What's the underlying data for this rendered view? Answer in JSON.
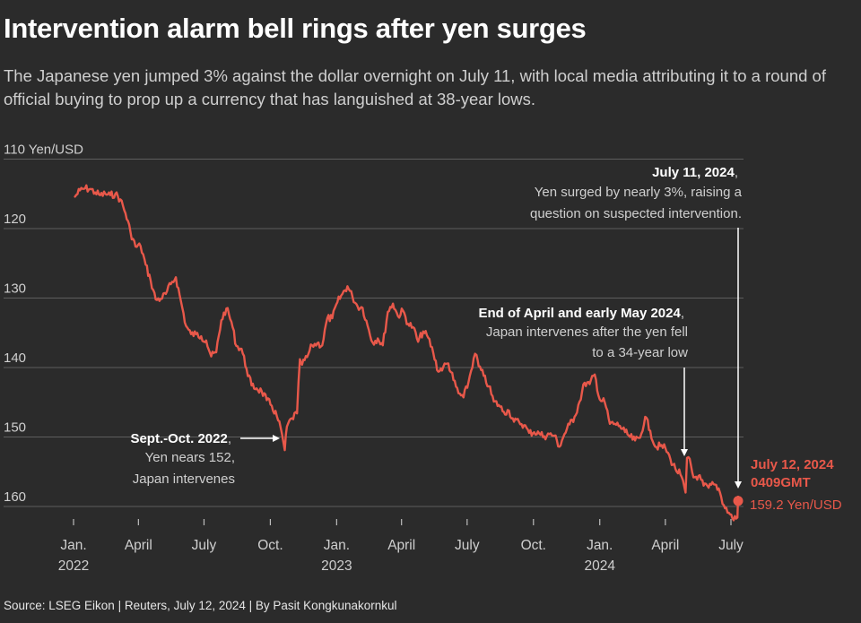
{
  "header": {
    "title": "Intervention alarm bell rings after yen surges",
    "subtitle": "The Japanese yen jumped 3% against the dollar overnight on July 11, with local media attributing it to a round of official buying to prop up a currency that has languished at 38-year lows."
  },
  "footer": {
    "source": "Source: LSEG Eikon | Reuters, July 12, 2024 | By Pasit Kongkunakornkul"
  },
  "colors": {
    "line": "#e8584a",
    "background": "#2b2b2b",
    "grid": "#5e5e5e"
  },
  "chart_data": {
    "type": "line",
    "ylabel": "Yen/USD",
    "ylim": [
      110,
      163
    ],
    "y_inverted": true,
    "yticks": [
      {
        "value": 110,
        "label": "110 Yen/USD"
      },
      {
        "value": 120,
        "label": "120"
      },
      {
        "value": 130,
        "label": "130"
      },
      {
        "value": 140,
        "label": "140"
      },
      {
        "value": 150,
        "label": "150"
      },
      {
        "value": 160,
        "label": "160"
      }
    ],
    "xlim": [
      "2022-01-01",
      "2024-07-31"
    ],
    "xticks": [
      {
        "date": "2022-01-01",
        "label": "Jan.",
        "year": "2022"
      },
      {
        "date": "2022-04-01",
        "label": "April",
        "year": ""
      },
      {
        "date": "2022-07-01",
        "label": "July",
        "year": ""
      },
      {
        "date": "2022-10-01",
        "label": "Oct.",
        "year": ""
      },
      {
        "date": "2023-01-01",
        "label": "Jan.",
        "year": "2023"
      },
      {
        "date": "2023-04-01",
        "label": "April",
        "year": ""
      },
      {
        "date": "2023-07-01",
        "label": "July",
        "year": ""
      },
      {
        "date": "2023-10-01",
        "label": "Oct.",
        "year": ""
      },
      {
        "date": "2024-01-01",
        "label": "Jan.",
        "year": "2024"
      },
      {
        "date": "2024-04-01",
        "label": "April",
        "year": ""
      },
      {
        "date": "2024-07-01",
        "label": "July",
        "year": ""
      }
    ],
    "series": [
      {
        "values": [
          [
            "2022-01-03",
            115.4
          ],
          [
            "2022-01-10",
            114.5
          ],
          [
            "2022-01-17",
            114.2
          ],
          [
            "2022-01-24",
            114.3
          ],
          [
            "2022-01-31",
            114.8
          ],
          [
            "2022-02-07",
            115.2
          ],
          [
            "2022-02-14",
            115.0
          ],
          [
            "2022-02-21",
            115.2
          ],
          [
            "2022-02-28",
            115.0
          ],
          [
            "2022-03-07",
            115.8
          ],
          [
            "2022-03-14",
            117.8
          ],
          [
            "2022-03-21",
            120.5
          ],
          [
            "2022-03-28",
            122.6
          ],
          [
            "2022-04-04",
            122.5
          ],
          [
            "2022-04-11",
            125.2
          ],
          [
            "2022-04-18",
            127.5
          ],
          [
            "2022-04-25",
            130.2
          ],
          [
            "2022-05-02",
            130.1
          ],
          [
            "2022-05-09",
            129.4
          ],
          [
            "2022-05-16",
            128.0
          ],
          [
            "2022-05-23",
            127.0
          ],
          [
            "2022-05-30",
            130.5
          ],
          [
            "2022-06-06",
            134.0
          ],
          [
            "2022-06-13",
            135.2
          ],
          [
            "2022-06-20",
            135.2
          ],
          [
            "2022-06-27",
            135.5
          ],
          [
            "2022-07-04",
            136.1
          ],
          [
            "2022-07-11",
            138.4
          ],
          [
            "2022-07-18",
            137.8
          ],
          [
            "2022-07-25",
            133.2
          ],
          [
            "2022-08-01",
            131.5
          ],
          [
            "2022-08-08",
            133.4
          ],
          [
            "2022-08-15",
            136.9
          ],
          [
            "2022-08-22",
            137.3
          ],
          [
            "2022-08-29",
            140.2
          ],
          [
            "2022-09-05",
            142.6
          ],
          [
            "2022-09-12",
            143.0
          ],
          [
            "2022-09-19",
            143.4
          ],
          [
            "2022-09-26",
            144.7
          ],
          [
            "2022-10-03",
            145.5
          ],
          [
            "2022-10-10",
            147.0
          ],
          [
            "2022-10-17",
            149.5
          ],
          [
            "2022-10-21",
            151.9
          ],
          [
            "2022-10-24",
            148.5
          ],
          [
            "2022-10-31",
            147.3
          ],
          [
            "2022-11-07",
            146.6
          ],
          [
            "2022-11-11",
            138.8
          ],
          [
            "2022-11-14",
            139.6
          ],
          [
            "2022-11-21",
            138.5
          ],
          [
            "2022-11-28",
            136.8
          ],
          [
            "2022-12-05",
            136.5
          ],
          [
            "2022-12-12",
            136.8
          ],
          [
            "2022-12-19",
            132.9
          ],
          [
            "2022-12-26",
            132.9
          ],
          [
            "2023-01-02",
            130.6
          ],
          [
            "2023-01-09",
            129.4
          ],
          [
            "2023-01-16",
            128.3
          ],
          [
            "2023-01-23",
            129.8
          ],
          [
            "2023-01-30",
            131.2
          ],
          [
            "2023-02-06",
            131.4
          ],
          [
            "2023-02-13",
            134.0
          ],
          [
            "2023-02-20",
            136.4
          ],
          [
            "2023-02-27",
            135.8
          ],
          [
            "2023-03-06",
            136.8
          ],
          [
            "2023-03-13",
            132.0
          ],
          [
            "2023-03-20",
            130.8
          ],
          [
            "2023-03-27",
            132.6
          ],
          [
            "2023-04-03",
            131.8
          ],
          [
            "2023-04-10",
            133.7
          ],
          [
            "2023-04-17",
            134.2
          ],
          [
            "2023-04-24",
            136.3
          ],
          [
            "2023-05-01",
            134.8
          ],
          [
            "2023-05-08",
            135.7
          ],
          [
            "2023-05-15",
            137.9
          ],
          [
            "2023-05-22",
            140.6
          ],
          [
            "2023-05-29",
            139.9
          ],
          [
            "2023-06-05",
            139.4
          ],
          [
            "2023-06-12",
            141.8
          ],
          [
            "2023-06-19",
            143.7
          ],
          [
            "2023-06-26",
            144.3
          ],
          [
            "2023-07-03",
            142.1
          ],
          [
            "2023-07-10",
            138.7
          ],
          [
            "2023-07-14",
            138.2
          ],
          [
            "2023-07-17",
            139.8
          ],
          [
            "2023-07-24",
            141.2
          ],
          [
            "2023-07-31",
            142.7
          ],
          [
            "2023-08-07",
            144.9
          ],
          [
            "2023-08-14",
            145.4
          ],
          [
            "2023-08-21",
            146.4
          ],
          [
            "2023-08-28",
            146.2
          ],
          [
            "2023-09-04",
            147.8
          ],
          [
            "2023-09-11",
            147.8
          ],
          [
            "2023-09-18",
            148.3
          ],
          [
            "2023-09-25",
            149.4
          ],
          [
            "2023-10-02",
            149.3
          ],
          [
            "2023-10-09",
            149.5
          ],
          [
            "2023-10-16",
            149.9
          ],
          [
            "2023-10-23",
            149.6
          ],
          [
            "2023-10-30",
            149.8
          ],
          [
            "2023-11-06",
            151.4
          ],
          [
            "2023-11-13",
            149.6
          ],
          [
            "2023-11-20",
            148.2
          ],
          [
            "2023-11-27",
            147.1
          ],
          [
            "2023-12-04",
            144.9
          ],
          [
            "2023-12-11",
            142.2
          ],
          [
            "2023-12-18",
            142.4
          ],
          [
            "2023-12-25",
            141.0
          ],
          [
            "2024-01-01",
            144.6
          ],
          [
            "2024-01-08",
            145.0
          ],
          [
            "2024-01-15",
            148.1
          ],
          [
            "2024-01-22",
            148.1
          ],
          [
            "2024-01-29",
            148.4
          ],
          [
            "2024-02-05",
            149.3
          ],
          [
            "2024-02-12",
            150.0
          ],
          [
            "2024-02-19",
            150.5
          ],
          [
            "2024-02-26",
            150.1
          ],
          [
            "2024-03-04",
            147.1
          ],
          [
            "2024-03-11",
            149.1
          ],
          [
            "2024-03-18",
            151.4
          ],
          [
            "2024-03-25",
            151.3
          ],
          [
            "2024-04-01",
            151.6
          ],
          [
            "2024-04-08",
            153.2
          ],
          [
            "2024-04-15",
            154.6
          ],
          [
            "2024-04-22",
            155.4
          ],
          [
            "2024-04-29",
            158.0
          ],
          [
            "2024-05-01",
            153.0
          ],
          [
            "2024-05-03",
            152.9
          ],
          [
            "2024-05-10",
            155.8
          ],
          [
            "2024-05-17",
            155.6
          ],
          [
            "2024-05-24",
            157.0
          ],
          [
            "2024-05-31",
            157.3
          ],
          [
            "2024-06-07",
            156.8
          ],
          [
            "2024-06-14",
            157.4
          ],
          [
            "2024-06-21",
            159.8
          ],
          [
            "2024-06-28",
            160.9
          ],
          [
            "2024-07-03",
            161.7
          ],
          [
            "2024-07-10",
            161.6
          ],
          [
            "2024-07-11",
            158.6
          ],
          [
            "2024-07-12",
            159.2
          ]
        ]
      }
    ],
    "annotations": [
      {
        "id": "sept-oct-2022",
        "title": "Sept.-Oct. 2022",
        "lines": [
          "Yen nears 152,",
          "Japan intervenes"
        ]
      },
      {
        "id": "apr-may-2024",
        "title": "End of April and early May 2024",
        "lines": [
          "Japan intervenes after the yen fell",
          "to a 34-year low"
        ]
      },
      {
        "id": "jul-11-2024",
        "title": "July 11, 2024",
        "lines": [
          "Yen surged by nearly 3%, raising a",
          "question on suspected intervention."
        ]
      }
    ],
    "last_point": {
      "date": "July 12, 2024",
      "time": "0409GMT",
      "label": "159.2 Yen/USD",
      "value": 159.2
    }
  }
}
